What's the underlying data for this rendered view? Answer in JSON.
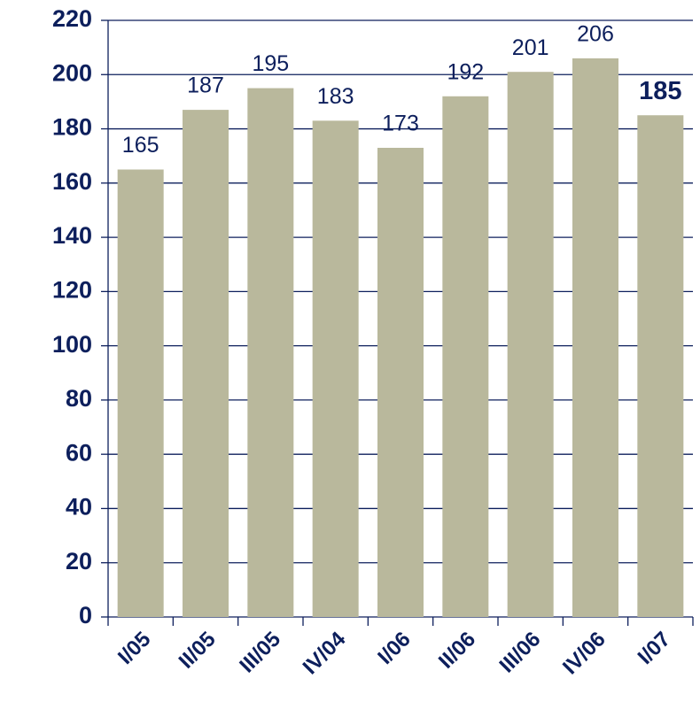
{
  "chart_data": {
    "type": "bar",
    "categories": [
      "I/05",
      "II/05",
      "III/05",
      "IV/04",
      "I/06",
      "II/06",
      "III/06",
      "IV/06",
      "I/07"
    ],
    "values": [
      165,
      187,
      195,
      183,
      173,
      192,
      201,
      206,
      185
    ],
    "color": "#b9b89c",
    "ylim": [
      0,
      220
    ],
    "yticks": [
      0,
      20,
      40,
      60,
      80,
      100,
      120,
      140,
      160,
      180,
      200,
      220
    ],
    "grid": true
  }
}
